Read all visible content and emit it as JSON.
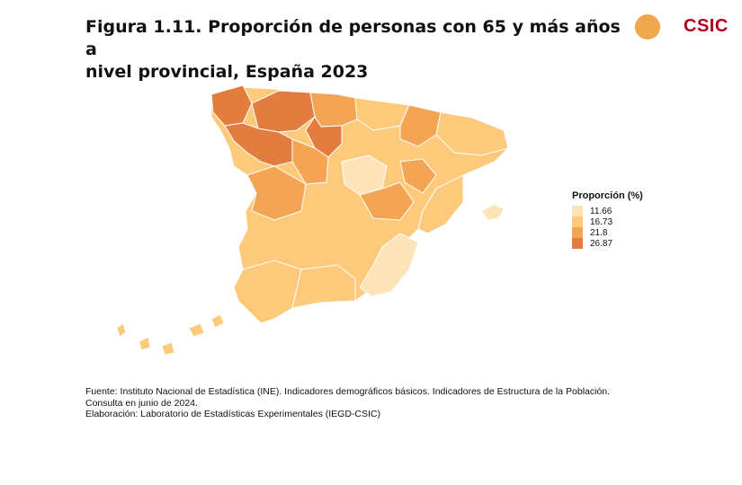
{
  "title": {
    "line1": "Figura 1.11. Proporción de personas con 65 y más años a",
    "line2": "nivel provincial, España 2023"
  },
  "logos": {
    "left_logo": "ceik-logo",
    "right_logo_text": "CSIC",
    "right_logo_color": "#b00020"
  },
  "colors": {
    "very_low": "#fde4b8",
    "low": "#fdc97a",
    "mid": "#f4a554",
    "high": "#e37c3f"
  },
  "legend": {
    "title": "Proporción (%)",
    "items": [
      {
        "label": "11.66",
        "color": "#fde4b8"
      },
      {
        "label": "16.73",
        "color": "#fdc97a"
      },
      {
        "label": "21.8",
        "color": "#f4a554"
      },
      {
        "label": "26.87",
        "color": "#e37c3f"
      }
    ]
  },
  "source": {
    "line1": "Fuente: Instituto Nacional de Estadística (INE). Indicadores demográficos básicos. Indicadores de Estructura de la Población.",
    "line2": "Consulta en junio de 2024.",
    "line3": "Elaboración: Laboratorio de Estadísticas Experimentales (IEGD-CSIC)"
  }
}
